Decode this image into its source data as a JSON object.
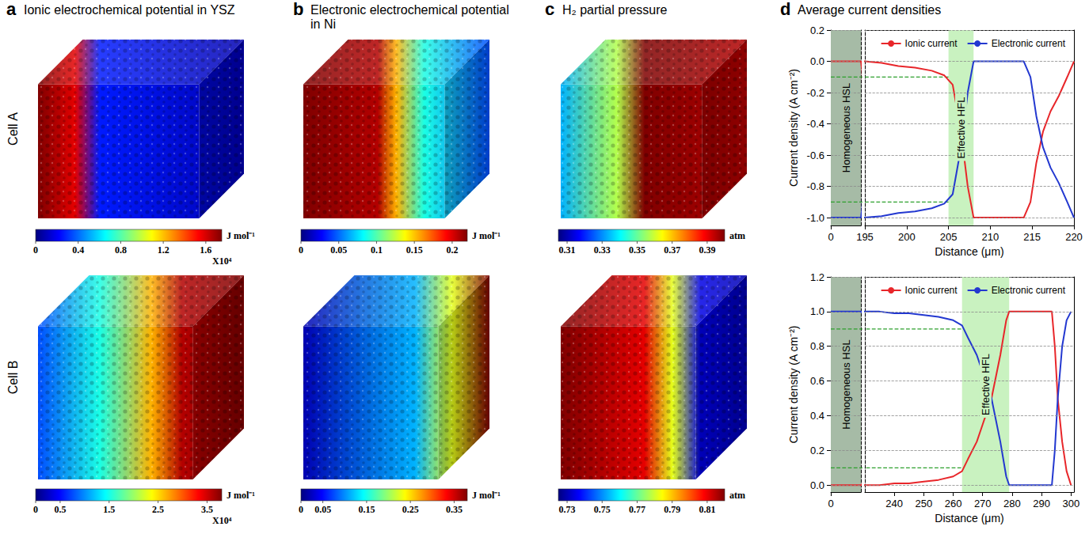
{
  "panels": [
    {
      "letter": "a",
      "title": "Ionic electrochemical potential in YSZ"
    },
    {
      "letter": "b",
      "title": "Electronic electrochemical potential in Ni"
    },
    {
      "letter": "c",
      "title": "H₂ partial pressure"
    },
    {
      "letter": "d",
      "title": "Average current densities"
    }
  ],
  "rows": [
    {
      "label": "Cell A",
      "colorbars": [
        {
          "range": [
            0,
            1.75
          ],
          "ticks": [
            0,
            0.4,
            0.8,
            1.2,
            1.6
          ],
          "unit": "J mol⁻¹",
          "multiplier": "X10⁴"
        },
        {
          "range": [
            0,
            0.22
          ],
          "ticks": [
            0,
            0.05,
            0.1,
            0.15,
            0.2
          ],
          "unit": "J mol⁻¹"
        },
        {
          "range": [
            0.305,
            0.4
          ],
          "ticks": [
            0.31,
            0.33,
            0.35,
            0.37,
            0.39
          ],
          "unit": "atm"
        }
      ]
    },
    {
      "label": "Cell B",
      "colorbars": [
        {
          "range": [
            0,
            3.8
          ],
          "ticks": [
            0,
            0.5,
            1.5,
            2.5,
            3.5
          ],
          "unit": "J mol⁻¹",
          "multiplier": "X10⁴"
        },
        {
          "range": [
            0,
            0.38
          ],
          "ticks": [
            0,
            0.05,
            0.15,
            0.25,
            0.35
          ],
          "unit": "J mol⁻¹"
        },
        {
          "range": [
            0.725,
            0.82
          ],
          "ticks": [
            0.73,
            0.75,
            0.77,
            0.79,
            0.81
          ],
          "unit": "atm"
        }
      ]
    }
  ],
  "chart_data": [
    {
      "type": "line",
      "x_label": "Distance (μm)",
      "y_label": "Current density (A cm⁻²)",
      "xlim": [
        0,
        220
      ],
      "x_break": 195,
      "xticks": [
        0,
        195,
        200,
        205,
        210,
        215,
        220
      ],
      "ylim": [
        -1.05,
        0.2
      ],
      "yticks": [
        {
          "value": -1,
          "label": "-1.0"
        },
        -0.8,
        -0.6,
        -0.4,
        -0.2,
        {
          "value": 0,
          "label": "0.0"
        },
        0.2
      ],
      "grid": true,
      "legend": "upper right",
      "series": [
        {
          "name": "Ionic current",
          "color": "#e8262a",
          "x": [
            0,
            195,
            197,
            199,
            201,
            203,
            204.5,
            205.5,
            206.5,
            207.3,
            208,
            214,
            214.8,
            215.5,
            216.3,
            217.2,
            218.2,
            219.2,
            220
          ],
          "values": [
            0,
            0,
            -0.01,
            -0.03,
            -0.04,
            -0.06,
            -0.09,
            -0.15,
            -0.45,
            -0.8,
            -1.0,
            -1.0,
            -0.9,
            -0.65,
            -0.45,
            -0.32,
            -0.22,
            -0.1,
            0
          ]
        },
        {
          "name": "Electronic current",
          "color": "#2338d0",
          "x": [
            0,
            195,
            197,
            199,
            201,
            203,
            204.5,
            205.5,
            206.5,
            207.3,
            208,
            214,
            214.8,
            215.5,
            216.3,
            217.2,
            218.2,
            219.2,
            220
          ],
          "values": [
            -1,
            -1,
            -0.99,
            -0.97,
            -0.96,
            -0.94,
            -0.91,
            -0.85,
            -0.55,
            -0.2,
            0,
            0,
            -0.1,
            -0.35,
            -0.55,
            -0.68,
            -0.78,
            -0.9,
            -1.0
          ]
        }
      ],
      "bands": [
        {
          "label": "Homogeneous HSL",
          "x": [
            0,
            195
          ],
          "color": "#a6bba6"
        },
        {
          "label": "Effective HFL",
          "x": [
            205,
            208
          ],
          "color": "#c9f2c0"
        }
      ],
      "reference_lines": [
        {
          "y": -0.1,
          "x": [
            0,
            205
          ],
          "color": "#2ca02c",
          "line_style": "dashed"
        },
        {
          "y": -0.9,
          "x": [
            0,
            205
          ],
          "color": "#2ca02c",
          "line_style": "dashed"
        }
      ]
    },
    {
      "type": "line",
      "x_label": "Distance (μm)",
      "y_label": "Current density (A cm⁻²)",
      "xlim": [
        0,
        301
      ],
      "x_break": 230,
      "xticks": [
        0,
        240,
        250,
        260,
        270,
        280,
        290,
        300
      ],
      "ylim": [
        -0.04,
        1.2
      ],
      "yticks": [
        {
          "value": 0,
          "label": "0.0"
        },
        0.2,
        0.4,
        0.6,
        0.8,
        {
          "value": 1,
          "label": "1.0"
        },
        1.2
      ],
      "grid": true,
      "legend": "upper right",
      "series": [
        {
          "name": "Ionic current",
          "color": "#e8262a",
          "x": [
            0,
            230,
            235,
            240,
            245,
            250,
            255,
            260,
            263,
            265,
            268,
            270,
            273,
            276,
            278,
            279,
            293.5,
            294.5,
            295.5,
            297,
            298.5,
            300
          ],
          "values": [
            0,
            0,
            0,
            0.01,
            0.01,
            0.02,
            0.03,
            0.05,
            0.08,
            0.15,
            0.25,
            0.35,
            0.5,
            0.75,
            0.95,
            1.0,
            1.0,
            0.8,
            0.5,
            0.25,
            0.08,
            0
          ]
        },
        {
          "name": "Electronic current",
          "color": "#2338d0",
          "x": [
            0,
            230,
            235,
            240,
            245,
            250,
            255,
            260,
            263,
            265,
            268,
            270,
            273,
            276,
            278,
            279,
            293.5,
            294.5,
            295.5,
            297,
            298.5,
            300
          ],
          "values": [
            1,
            1,
            1,
            0.99,
            0.99,
            0.98,
            0.97,
            0.95,
            0.92,
            0.85,
            0.75,
            0.65,
            0.5,
            0.25,
            0.05,
            0,
            0,
            0.2,
            0.5,
            0.8,
            0.95,
            1.0
          ]
        }
      ],
      "bands": [
        {
          "label": "Homogeneous HSL",
          "x": [
            0,
            230
          ],
          "color": "#a6bba6"
        },
        {
          "label": "Effective HFL",
          "x": [
            263,
            279
          ],
          "color": "#c9f2c0"
        }
      ],
      "reference_lines": [
        {
          "y": 0.9,
          "x": [
            0,
            263
          ],
          "color": "#2ca02c",
          "line_style": "dashed"
        },
        {
          "y": 0.1,
          "x": [
            0,
            263
          ],
          "color": "#2ca02c",
          "line_style": "dashed"
        }
      ]
    }
  ]
}
